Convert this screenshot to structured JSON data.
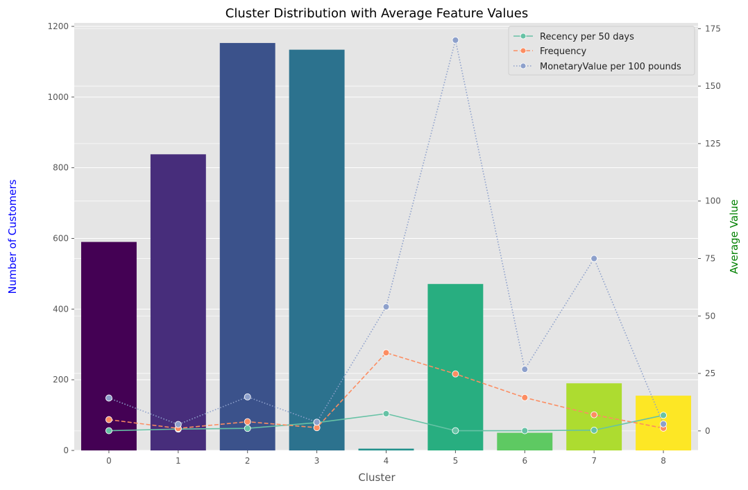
{
  "chart_data": {
    "type": "bar",
    "title": "Cluster Distribution with Average Feature Values",
    "xlabel": "Cluster",
    "ylabel_left": "Number of Customers",
    "ylabel_right": "Average Value",
    "ylabel_left_color": "#0000ff",
    "ylabel_right_color": "#008000",
    "categories": [
      "0",
      "1",
      "2",
      "3",
      "4",
      "5",
      "6",
      "7",
      "8"
    ],
    "bars": {
      "values": [
        590,
        838,
        1153,
        1134,
        5,
        471,
        50,
        190,
        155
      ],
      "colors": [
        "#440154",
        "#472d7b",
        "#3b528b",
        "#2c728e",
        "#21918c",
        "#28ae80",
        "#5ec962",
        "#addc30",
        "#fde725"
      ],
      "ylim": [
        0,
        1200
      ],
      "yticks": [
        0,
        200,
        400,
        600,
        800,
        1000,
        1200
      ]
    },
    "series": [
      {
        "name": "Recency per 50 days",
        "values": [
          0.1,
          0.8,
          1.1,
          3.6,
          7.5,
          0.1,
          0.1,
          0.3,
          6.8
        ],
        "color": "#66c2a5",
        "dash": "solid"
      },
      {
        "name": "Frequency",
        "values": [
          4.9,
          1.1,
          4.0,
          1.4,
          34.0,
          24.8,
          14.5,
          7.0,
          1.2
        ],
        "color": "#fc8d62",
        "dash": "dashed"
      },
      {
        "name": "MonetaryValue per 100 pounds",
        "values": [
          14.3,
          2.8,
          14.8,
          3.8,
          54.0,
          170.0,
          26.8,
          75.0,
          3.0
        ],
        "color": "#8da0cb",
        "dash": "dotted"
      }
    ],
    "right_axis": {
      "ylim": [
        -8.5,
        177.5
      ],
      "yticks": [
        0,
        25,
        50,
        75,
        100,
        125,
        150,
        175
      ]
    },
    "grid": true,
    "legend_position": "top-right"
  }
}
